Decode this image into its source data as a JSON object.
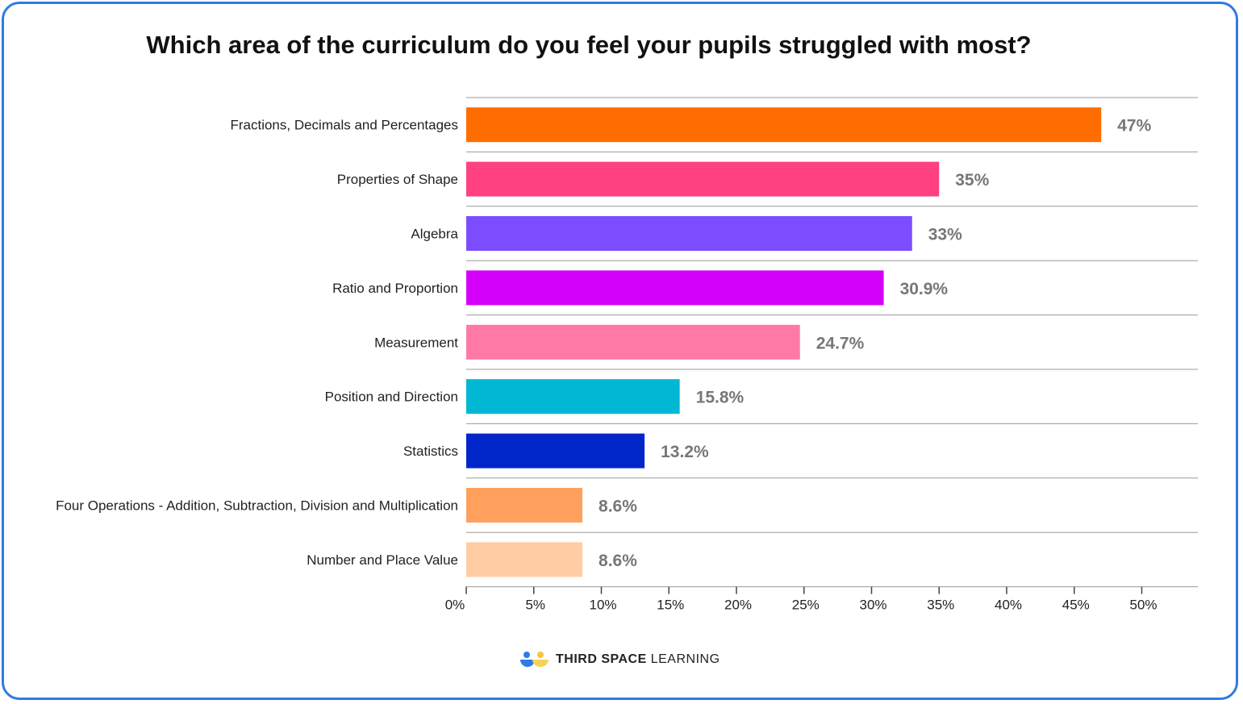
{
  "chart_data": {
    "type": "bar",
    "orientation": "horizontal",
    "title": "Which area of the curriculum do you feel your pupils struggled with most?",
    "categories": [
      "Fractions, Decimals and Percentages",
      "Properties of Shape",
      "Algebra",
      "Ratio and Proportion",
      "Measurement",
      "Position and Direction",
      "Statistics",
      "Four Operations - Addition, Subtraction, Division and Multiplication",
      "Number and Place Value"
    ],
    "values": [
      47,
      35,
      33,
      30.9,
      24.7,
      15.8,
      13.2,
      8.6,
      8.6
    ],
    "value_labels": [
      "47%",
      "35%",
      "33%",
      "30.9%",
      "24.7%",
      "15.8%",
      "13.2%",
      "8.6%",
      "8.6%"
    ],
    "colors": [
      "#ff6d00",
      "#ff4081",
      "#7c4dff",
      "#d500f9",
      "#ff79a6",
      "#00b8d4",
      "#0026ca",
      "#ffa05c",
      "#ffcca3"
    ],
    "xlim": [
      0,
      53
    ],
    "xticks": [
      0,
      5,
      10,
      15,
      20,
      25,
      30,
      35,
      40,
      45,
      50
    ],
    "xtick_labels": [
      "0%",
      "5%",
      "10%",
      "15%",
      "20%",
      "25%",
      "30%",
      "35%",
      "40%",
      "45%",
      "50%"
    ],
    "xlabel": "",
    "ylabel": "",
    "grid": true
  },
  "brand": {
    "bold": "THIRD SPACE",
    "light": "LEARNING"
  }
}
